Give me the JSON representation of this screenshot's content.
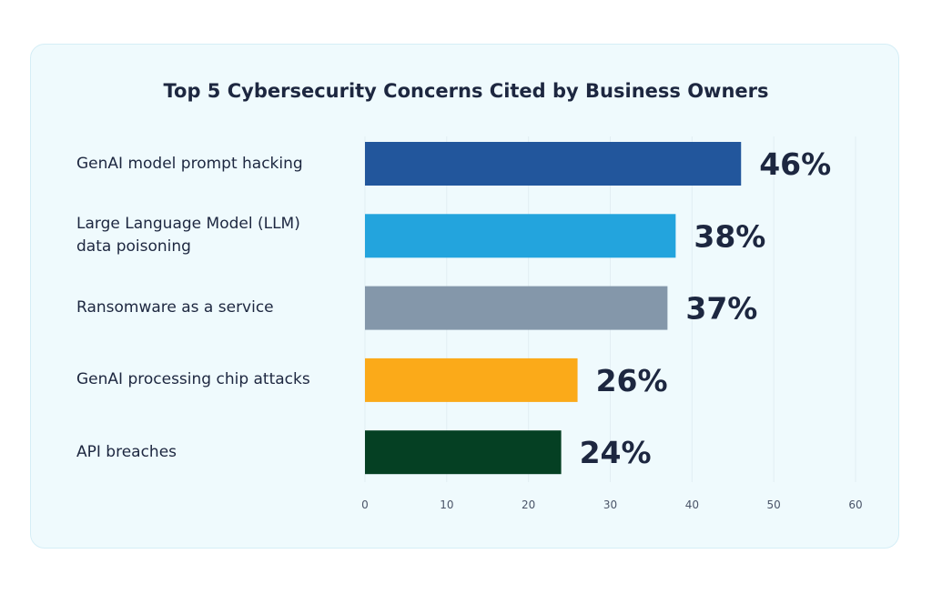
{
  "chart_data": {
    "type": "bar",
    "orientation": "horizontal",
    "title": "Top 5 Cybersecurity Concerns Cited by Business Owners",
    "categories": [
      "GenAI model prompt hacking",
      "Large Language Model (LLM) data poisoning",
      "Ransomware as a service",
      "GenAI processing chip attacks",
      "API breaches"
    ],
    "category_lines": [
      [
        "GenAI model prompt hacking"
      ],
      [
        "Large Language Model (LLM)",
        "data poisoning"
      ],
      [
        "Ransomware as a service"
      ],
      [
        "GenAI processing chip attacks"
      ],
      [
        "API breaches"
      ]
    ],
    "values": [
      46,
      38,
      37,
      26,
      24
    ],
    "data_labels": [
      "46%",
      "38%",
      "37%",
      "26%",
      "24%"
    ],
    "colors": [
      "#22569c",
      "#23a4dd",
      "#8497aa",
      "#fbaa19",
      "#054023"
    ],
    "xlim": [
      0,
      60
    ],
    "xticks": [
      "0",
      "10",
      "20",
      "30",
      "40",
      "50",
      "60"
    ],
    "grid": true,
    "xlabel": "",
    "ylabel": ""
  }
}
